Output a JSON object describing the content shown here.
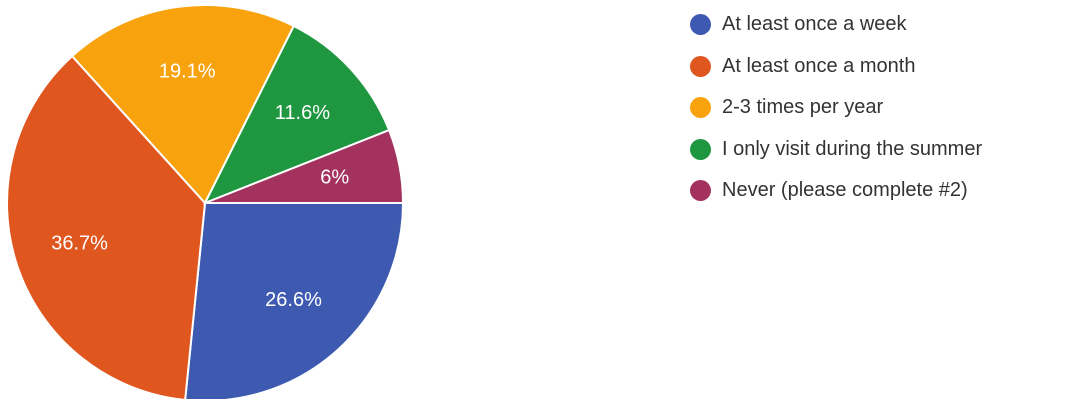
{
  "chart_data": {
    "type": "pie",
    "title": "",
    "legend_position": "right",
    "start_angle_deg": 0,
    "direction": "clockwise",
    "slices": [
      {
        "label": "At least once a week",
        "value": 26.6,
        "display": "26.6%",
        "color": "#3d5ab0"
      },
      {
        "label": "At least once a month",
        "value": 36.7,
        "display": "36.7%",
        "color": "#e0561f"
      },
      {
        "label": "2-3 times per year",
        "value": 19.1,
        "display": "19.1%",
        "color": "#f8a20e"
      },
      {
        "label": "I only visit during the summer",
        "value": 11.6,
        "display": "11.6%",
        "color": "#1f9640"
      },
      {
        "label": "Never (please complete #2)",
        "value": 6.0,
        "display": "6%",
        "color": "#a3325f"
      }
    ]
  }
}
